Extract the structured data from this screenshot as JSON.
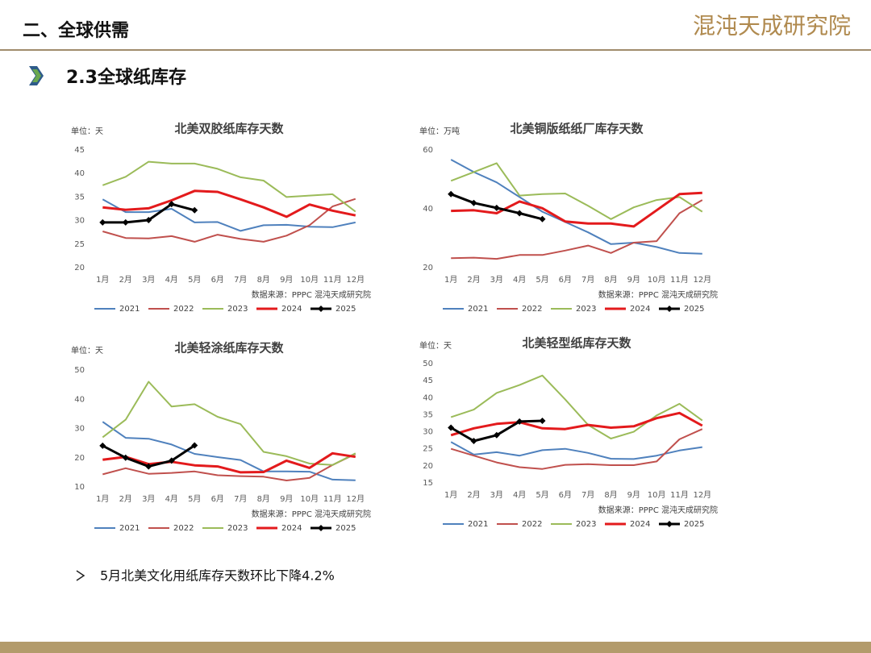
{
  "header": {
    "title": "二、全球供需",
    "logo": "混沌天成研究院"
  },
  "section": {
    "title": "2.3全球纸库存"
  },
  "bullet": "5月北美文化用纸库存天数环比下降4.2%",
  "chart_data": [
    {
      "type": "line",
      "title": "北美双胶纸库存天数",
      "unit": "单位：天",
      "source": "数据来源：PPPC  混沌天成研究院",
      "categories": [
        "1月",
        "2月",
        "3月",
        "4月",
        "5月",
        "6月",
        "7月",
        "8月",
        "9月",
        "10月",
        "11月",
        "12月"
      ],
      "ylim": [
        20,
        45
      ],
      "yticks": [
        20,
        25,
        30,
        35,
        40,
        45
      ],
      "grid": false,
      "series": [
        {
          "name": "2021",
          "color": "#4f81bd",
          "values": [
            34.5,
            31.8,
            31.8,
            32.5,
            29.6,
            29.7,
            27.8,
            29,
            29.1,
            28.7,
            28.6,
            29.6
          ]
        },
        {
          "name": "2022",
          "color": "#c0504d",
          "values": [
            27.7,
            26.3,
            26.2,
            26.7,
            25.5,
            27,
            26.1,
            25.5,
            26.8,
            29,
            33,
            34.6
          ]
        },
        {
          "name": "2023",
          "color": "#9bbb59",
          "values": [
            37.5,
            39.3,
            42.5,
            42.1,
            42.1,
            41,
            39.2,
            38.5,
            35,
            35.3,
            35.6,
            31.9
          ]
        },
        {
          "name": "2024",
          "color": "#e31a1c",
          "values": [
            32.8,
            32.3,
            32.6,
            34.3,
            36.3,
            36.1,
            34.5,
            32.8,
            30.8,
            33.4,
            32.1,
            31.1
          ]
        },
        {
          "name": "2025",
          "color": "#000000",
          "marker": "diamond",
          "values": [
            29.6,
            29.6,
            30.1,
            33.5,
            32.2,
            null,
            null,
            null,
            null,
            null,
            null,
            null
          ]
        }
      ]
    },
    {
      "type": "line",
      "title": "北美铜版纸纸厂库存天数",
      "unit": "单位：万吨",
      "source": "数据来源：PPPC  混沌天成研究院",
      "categories": [
        "1月",
        "2月",
        "3月",
        "4月",
        "5月",
        "6月",
        "7月",
        "8月",
        "9月",
        "10月",
        "11月",
        "12月"
      ],
      "ylim": [
        20,
        60
      ],
      "yticks": [
        20,
        40,
        60
      ],
      "grid": false,
      "series": [
        {
          "name": "2021",
          "color": "#4f81bd",
          "values": [
            56.7,
            52.5,
            49,
            44,
            39,
            35.5,
            32,
            28,
            28.5,
            27,
            25,
            24.7
          ]
        },
        {
          "name": "2022",
          "color": "#c0504d",
          "values": [
            23.2,
            23.4,
            23,
            24.3,
            24.3,
            25.8,
            27.5,
            25,
            28.5,
            29,
            38.5,
            43
          ]
        },
        {
          "name": "2023",
          "color": "#9bbb59",
          "values": [
            49.5,
            52.5,
            55.5,
            44.5,
            45,
            45.2,
            41,
            36.5,
            40.5,
            43,
            44,
            39
          ]
        },
        {
          "name": "2024",
          "color": "#e31a1c",
          "values": [
            39.3,
            39.5,
            38.5,
            42.5,
            40.2,
            35.7,
            35,
            35,
            34,
            39.5,
            45,
            45.4
          ]
        },
        {
          "name": "2025",
          "color": "#000000",
          "marker": "diamond",
          "values": [
            45,
            42,
            40.3,
            38.5,
            36.5,
            null,
            null,
            null,
            null,
            null,
            null,
            null
          ]
        }
      ]
    },
    {
      "type": "line",
      "title": "北美轻涂纸库存天数",
      "unit": "单位：天",
      "source": "数据来源：PPPC  混沌天成研究院",
      "categories": [
        "1月",
        "2月",
        "3月",
        "4月",
        "5月",
        "6月",
        "7月",
        "8月",
        "9月",
        "10月",
        "11月",
        "12月"
      ],
      "ylim": [
        10,
        50
      ],
      "yticks": [
        10,
        20,
        30,
        40,
        50
      ],
      "grid": false,
      "series": [
        {
          "name": "2021",
          "color": "#4f81bd",
          "values": [
            32.3,
            26.8,
            26.5,
            24.5,
            21.3,
            20.2,
            19.2,
            15.3,
            15.3,
            15.2,
            12.5,
            12.3
          ]
        },
        {
          "name": "2022",
          "color": "#c0504d",
          "values": [
            14.3,
            16.4,
            14.5,
            14.8,
            15.3,
            14,
            13.7,
            13.5,
            12.2,
            13.1,
            17.5,
            21.3
          ]
        },
        {
          "name": "2023",
          "color": "#9bbb59",
          "values": [
            27,
            33,
            46,
            37.5,
            38.3,
            34,
            31.5,
            22,
            20.5,
            18,
            17.5,
            21.5
          ]
        },
        {
          "name": "2024",
          "color": "#e31a1c",
          "values": [
            19.3,
            20.3,
            17.8,
            18.6,
            17.4,
            17,
            15,
            15.1,
            19,
            16.5,
            21.5,
            20.3
          ]
        },
        {
          "name": "2025",
          "color": "#000000",
          "marker": "diamond",
          "values": [
            24.1,
            20,
            17,
            19,
            24.2,
            null,
            null,
            null,
            null,
            null,
            null,
            null
          ]
        }
      ]
    },
    {
      "type": "line",
      "title": "北美轻型纸库存天数",
      "unit": "单位：天",
      "source": "数据来源：PPPC  混沌天成研究院",
      "categories": [
        "1月",
        "2月",
        "3月",
        "4月",
        "5月",
        "6月",
        "7月",
        "8月",
        "9月",
        "10月",
        "11月",
        "12月"
      ],
      "ylim": [
        15,
        50
      ],
      "yticks": [
        15,
        20,
        25,
        30,
        35,
        40,
        45,
        50
      ],
      "grid": false,
      "series": [
        {
          "name": "2021",
          "color": "#4f81bd",
          "values": [
            27,
            23.3,
            24,
            23,
            24.6,
            25,
            23.8,
            22.1,
            22,
            23,
            24.5,
            25.5
          ]
        },
        {
          "name": "2022",
          "color": "#c0504d",
          "values": [
            25,
            23,
            21,
            19.6,
            19.1,
            20.3,
            20.5,
            20.2,
            20.2,
            21.3,
            27.8,
            30.8
          ]
        },
        {
          "name": "2023",
          "color": "#9bbb59",
          "values": [
            34.3,
            36.5,
            41.4,
            43.7,
            46.5,
            39.5,
            32,
            28,
            30,
            34.8,
            38.2,
            33.3
          ]
        },
        {
          "name": "2024",
          "color": "#e31a1c",
          "values": [
            29,
            31,
            32.3,
            32.8,
            31,
            30.8,
            32,
            31.2,
            31.6,
            34,
            35.5,
            31.8
          ]
        },
        {
          "name": "2025",
          "color": "#000000",
          "marker": "diamond",
          "values": [
            31.2,
            27.3,
            29,
            33,
            33.2,
            null,
            null,
            null,
            null,
            null,
            null,
            null
          ]
        }
      ]
    }
  ]
}
